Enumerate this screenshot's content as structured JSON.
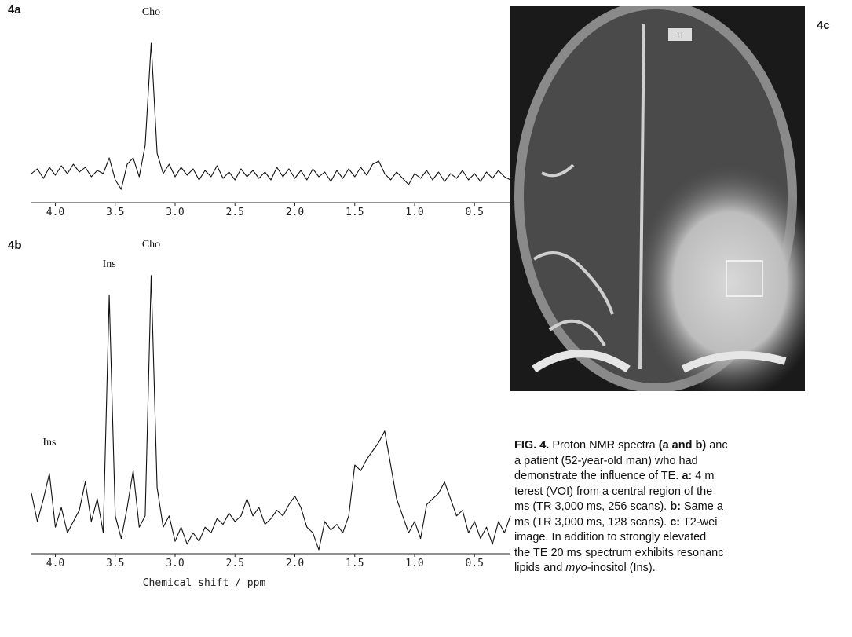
{
  "panels": {
    "a": "4a",
    "b": "4b",
    "c": "4c"
  },
  "chart_data": [
    {
      "type": "line",
      "x": [
        4.2,
        4.15,
        4.1,
        4.05,
        4.0,
        3.95,
        3.9,
        3.85,
        3.8,
        3.75,
        3.7,
        3.65,
        3.6,
        3.55,
        3.5,
        3.45,
        3.4,
        3.35,
        3.3,
        3.25,
        3.2,
        3.15,
        3.1,
        3.05,
        3.0,
        2.95,
        2.9,
        2.85,
        2.8,
        2.75,
        2.7,
        2.65,
        2.6,
        2.55,
        2.5,
        2.45,
        2.4,
        2.35,
        2.3,
        2.25,
        2.2,
        2.15,
        2.1,
        2.05,
        2.0,
        1.95,
        1.9,
        1.85,
        1.8,
        1.75,
        1.7,
        1.65,
        1.6,
        1.55,
        1.5,
        1.45,
        1.4,
        1.35,
        1.3,
        1.25,
        1.2,
        1.15,
        1.1,
        1.05,
        1.0,
        0.95,
        0.9,
        0.85,
        0.8,
        0.75,
        0.7,
        0.65,
        0.6,
        0.55,
        0.5,
        0.45,
        0.4,
        0.35,
        0.3,
        0.25,
        0.2
      ],
      "series": [
        {
          "color": "#111111",
          "values": [
            12,
            15,
            9,
            16,
            11,
            17,
            12,
            18,
            13,
            16,
            10,
            14,
            12,
            22,
            8,
            2,
            18,
            22,
            10,
            30,
            95,
            25,
            12,
            18,
            10,
            16,
            11,
            15,
            8,
            14,
            10,
            17,
            9,
            13,
            8,
            15,
            10,
            14,
            9,
            13,
            8,
            16,
            10,
            15,
            9,
            14,
            8,
            15,
            10,
            13,
            7,
            14,
            9,
            15,
            10,
            16,
            11,
            18,
            20,
            12,
            8,
            13,
            9,
            5,
            12,
            9,
            14,
            8,
            13,
            7,
            12,
            9,
            14,
            8,
            12,
            7,
            13,
            9,
            14,
            10,
            8
          ]
        }
      ],
      "xlim": [
        4.2,
        0.2
      ],
      "ylim": [
        0,
        100
      ],
      "xticks": [
        {
          "value": 4,
          "label": "4.0"
        },
        3.5,
        {
          "value": 3,
          "label": "3.0"
        },
        2.5,
        {
          "value": 2,
          "label": "2.0"
        },
        1.5,
        {
          "value": 1,
          "label": "1.0"
        },
        0.5
      ],
      "annotations": [
        {
          "text": "Cho",
          "x": 3.2
        }
      ]
    },
    {
      "type": "line",
      "x": [
        4.2,
        4.15,
        4.1,
        4.05,
        4.0,
        3.95,
        3.9,
        3.85,
        3.8,
        3.75,
        3.7,
        3.65,
        3.6,
        3.55,
        3.5,
        3.45,
        3.4,
        3.35,
        3.3,
        3.25,
        3.2,
        3.15,
        3.1,
        3.05,
        3.0,
        2.95,
        2.9,
        2.85,
        2.8,
        2.75,
        2.7,
        2.65,
        2.6,
        2.55,
        2.5,
        2.45,
        2.4,
        2.35,
        2.3,
        2.25,
        2.2,
        2.15,
        2.1,
        2.05,
        2.0,
        1.95,
        1.9,
        1.85,
        1.8,
        1.75,
        1.7,
        1.65,
        1.6,
        1.55,
        1.5,
        1.45,
        1.4,
        1.35,
        1.3,
        1.25,
        1.2,
        1.15,
        1.1,
        1.05,
        1.0,
        0.95,
        0.9,
        0.85,
        0.8,
        0.75,
        0.7,
        0.65,
        0.6,
        0.55,
        0.5,
        0.45,
        0.4,
        0.35,
        0.3,
        0.25,
        0.2
      ],
      "series": [
        {
          "color": "#111111",
          "values": [
            20,
            10,
            18,
            27,
            8,
            15,
            6,
            10,
            14,
            24,
            10,
            18,
            6,
            90,
            12,
            4,
            15,
            28,
            8,
            12,
            97,
            22,
            8,
            12,
            3,
            8,
            2,
            6,
            3,
            8,
            6,
            11,
            9,
            13,
            10,
            12,
            18,
            12,
            15,
            9,
            11,
            14,
            12,
            16,
            19,
            15,
            8,
            6,
            0,
            10,
            7,
            9,
            6,
            12,
            30,
            28,
            32,
            35,
            38,
            42,
            30,
            18,
            12,
            6,
            10,
            4,
            16,
            18,
            20,
            24,
            18,
            12,
            14,
            6,
            10,
            4,
            8,
            2,
            10,
            6,
            12
          ]
        }
      ],
      "xlim": [
        4.2,
        0.2
      ],
      "ylim": [
        0,
        100
      ],
      "xticks": [
        {
          "value": 4,
          "label": "4.0"
        },
        3.5,
        {
          "value": 3,
          "label": "3.0"
        },
        2.5,
        {
          "value": 2,
          "label": "2.0"
        },
        1.5,
        {
          "value": 1,
          "label": "1.0"
        },
        0.5
      ],
      "x_label": "Chemical shift / ppm",
      "annotations": [
        {
          "text": "Cho",
          "x": 3.2
        },
        {
          "text": "Ins",
          "x": 3.55
        },
        {
          "text": "Ins",
          "x": 4.05
        }
      ]
    }
  ],
  "image": {
    "marker": "H"
  },
  "caption": {
    "lines": [
      [
        {
          "text": "FIG. 4.",
          "style": "bold"
        },
        {
          "text": " Proton NMR spectra ",
          "style": "normal"
        },
        {
          "text": "(a and b)",
          "style": "bold"
        },
        {
          "text": " anc",
          "style": "normal"
        }
      ],
      [
        {
          "text": "a patient (52-year-old man) who had",
          "style": "normal"
        }
      ],
      [
        {
          "text": "demonstrate the influence of TE. ",
          "style": "normal"
        },
        {
          "text": "a:",
          "style": "bold"
        },
        {
          "text": " 4 m",
          "style": "normal"
        }
      ],
      [
        {
          "text": "terest (VOI) from a central region of the",
          "style": "normal"
        }
      ],
      [
        {
          "text": "ms (TR 3,000 ms, 256 scans). ",
          "style": "normal"
        },
        {
          "text": "b:",
          "style": "bold"
        },
        {
          "text": " Same a",
          "style": "normal"
        }
      ],
      [
        {
          "text": "ms (TR 3,000 ms, 128 scans). ",
          "style": "normal"
        },
        {
          "text": "c:",
          "style": "bold"
        },
        {
          "text": " T2-wei",
          "style": "normal"
        }
      ],
      [
        {
          "text": "image. In addition to strongly elevated",
          "style": "normal"
        }
      ],
      [
        {
          "text": "the TE 20 ms spectrum exhibits resonanc",
          "style": "normal"
        }
      ],
      [
        {
          "text": "lipids and ",
          "style": "normal"
        },
        {
          "text": "myo",
          "style": "italic"
        },
        {
          "text": "-inositol (Ins).",
          "style": "normal"
        }
      ]
    ]
  }
}
